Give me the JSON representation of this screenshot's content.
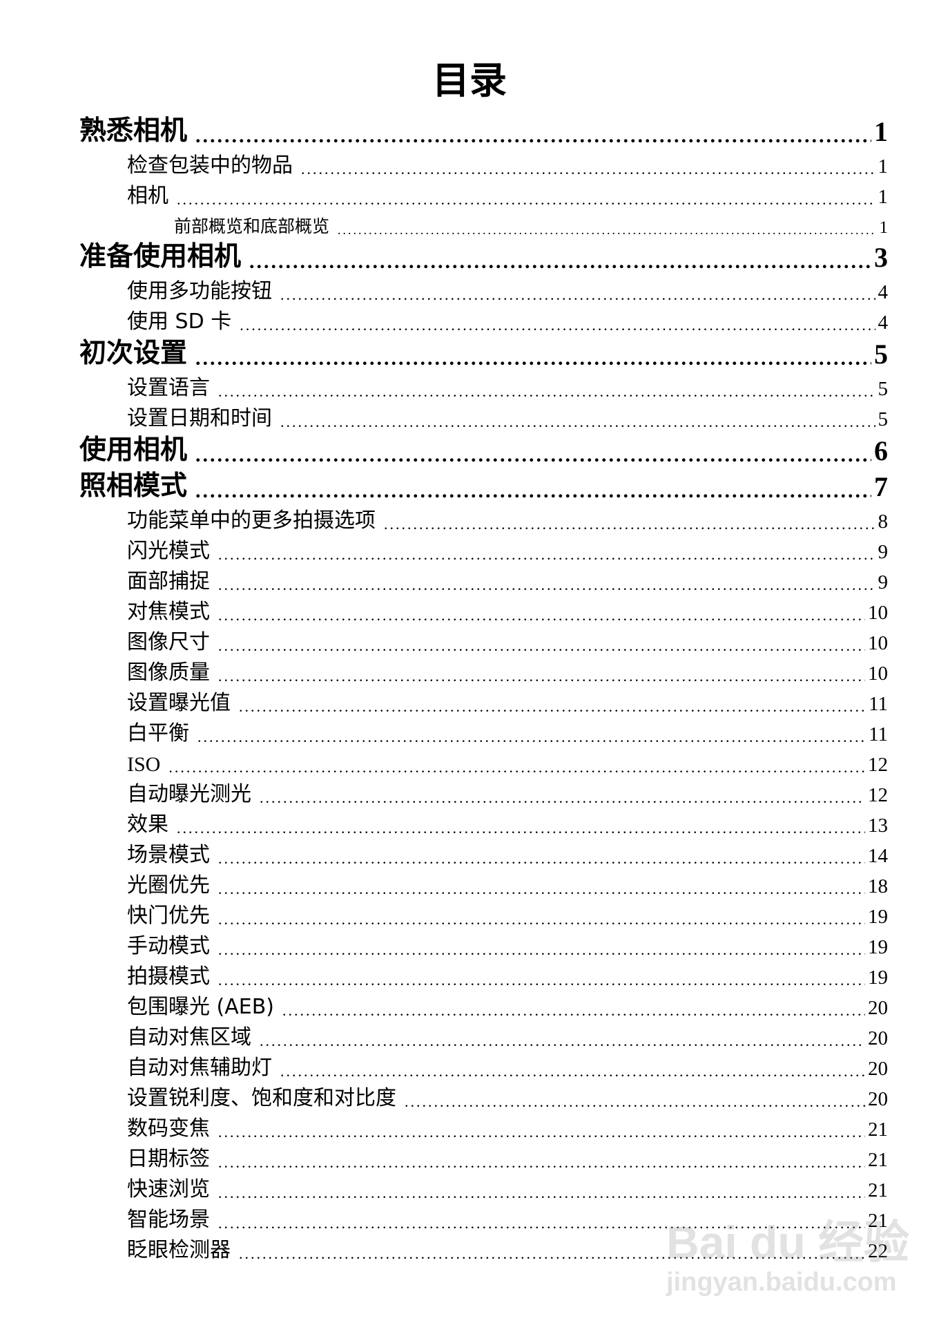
{
  "title": "目录",
  "entries": [
    {
      "level": 1,
      "label": "熟悉相机",
      "page": "1"
    },
    {
      "level": 2,
      "label": "检查包装中的物品",
      "page": "1"
    },
    {
      "level": 2,
      "label": "相机",
      "page": "1"
    },
    {
      "level": 3,
      "label": "前部概览和底部概览",
      "page": "1"
    },
    {
      "level": 1,
      "label": "准备使用相机",
      "page": "3"
    },
    {
      "level": 2,
      "label": "使用多功能按钮",
      "page": "4"
    },
    {
      "level": 2,
      "label": "使用 SD 卡",
      "page": "4"
    },
    {
      "level": 1,
      "label": "初次设置",
      "page": "5"
    },
    {
      "level": 2,
      "label": "设置语言",
      "page": "5"
    },
    {
      "level": 2,
      "label": "设置日期和时间",
      "page": "5"
    },
    {
      "level": 1,
      "label": "使用相机",
      "page": "6"
    },
    {
      "level": 1,
      "label": "照相模式",
      "page": "7"
    },
    {
      "level": 2,
      "label": "功能菜单中的更多拍摄选项",
      "page": "8"
    },
    {
      "level": 2,
      "label": "闪光模式",
      "page": "9"
    },
    {
      "level": 2,
      "label": "面部捕捉",
      "page": "9"
    },
    {
      "level": 2,
      "label": "对焦模式",
      "page": "10"
    },
    {
      "level": 2,
      "label": "图像尺寸",
      "page": "10"
    },
    {
      "level": 2,
      "label": "图像质量",
      "page": "10"
    },
    {
      "level": 2,
      "label": "设置曝光值",
      "page": "11"
    },
    {
      "level": 2,
      "label": "白平衡",
      "page": "11"
    },
    {
      "level": 2,
      "label": "ISO",
      "page": "12"
    },
    {
      "level": 2,
      "label": "自动曝光测光",
      "page": "12"
    },
    {
      "level": 2,
      "label": "效果",
      "page": "13"
    },
    {
      "level": 2,
      "label": "场景模式",
      "page": "14"
    },
    {
      "level": 2,
      "label": "光圈优先",
      "page": "18"
    },
    {
      "level": 2,
      "label": "快门优先",
      "page": "19"
    },
    {
      "level": 2,
      "label": "手动模式",
      "page": "19"
    },
    {
      "level": 2,
      "label": "拍摄模式",
      "page": "19"
    },
    {
      "level": 2,
      "label": "包围曝光 (AEB)",
      "page": "20"
    },
    {
      "level": 2,
      "label": "自动对焦区域",
      "page": "20"
    },
    {
      "level": 2,
      "label": "自动对焦辅助灯",
      "page": "20"
    },
    {
      "level": 2,
      "label": "设置锐利度、饱和度和对比度",
      "page": "20"
    },
    {
      "level": 2,
      "label": "数码变焦",
      "page": "21"
    },
    {
      "level": 2,
      "label": "日期标签",
      "page": "21"
    },
    {
      "level": 2,
      "label": "快速浏览",
      "page": "21"
    },
    {
      "level": 2,
      "label": "智能场景",
      "page": "21"
    },
    {
      "level": 2,
      "label": "眨眼检测器",
      "page": "22"
    }
  ],
  "watermark": {
    "logo": "Bai du 经验",
    "url": "jingyan.baidu.com"
  }
}
